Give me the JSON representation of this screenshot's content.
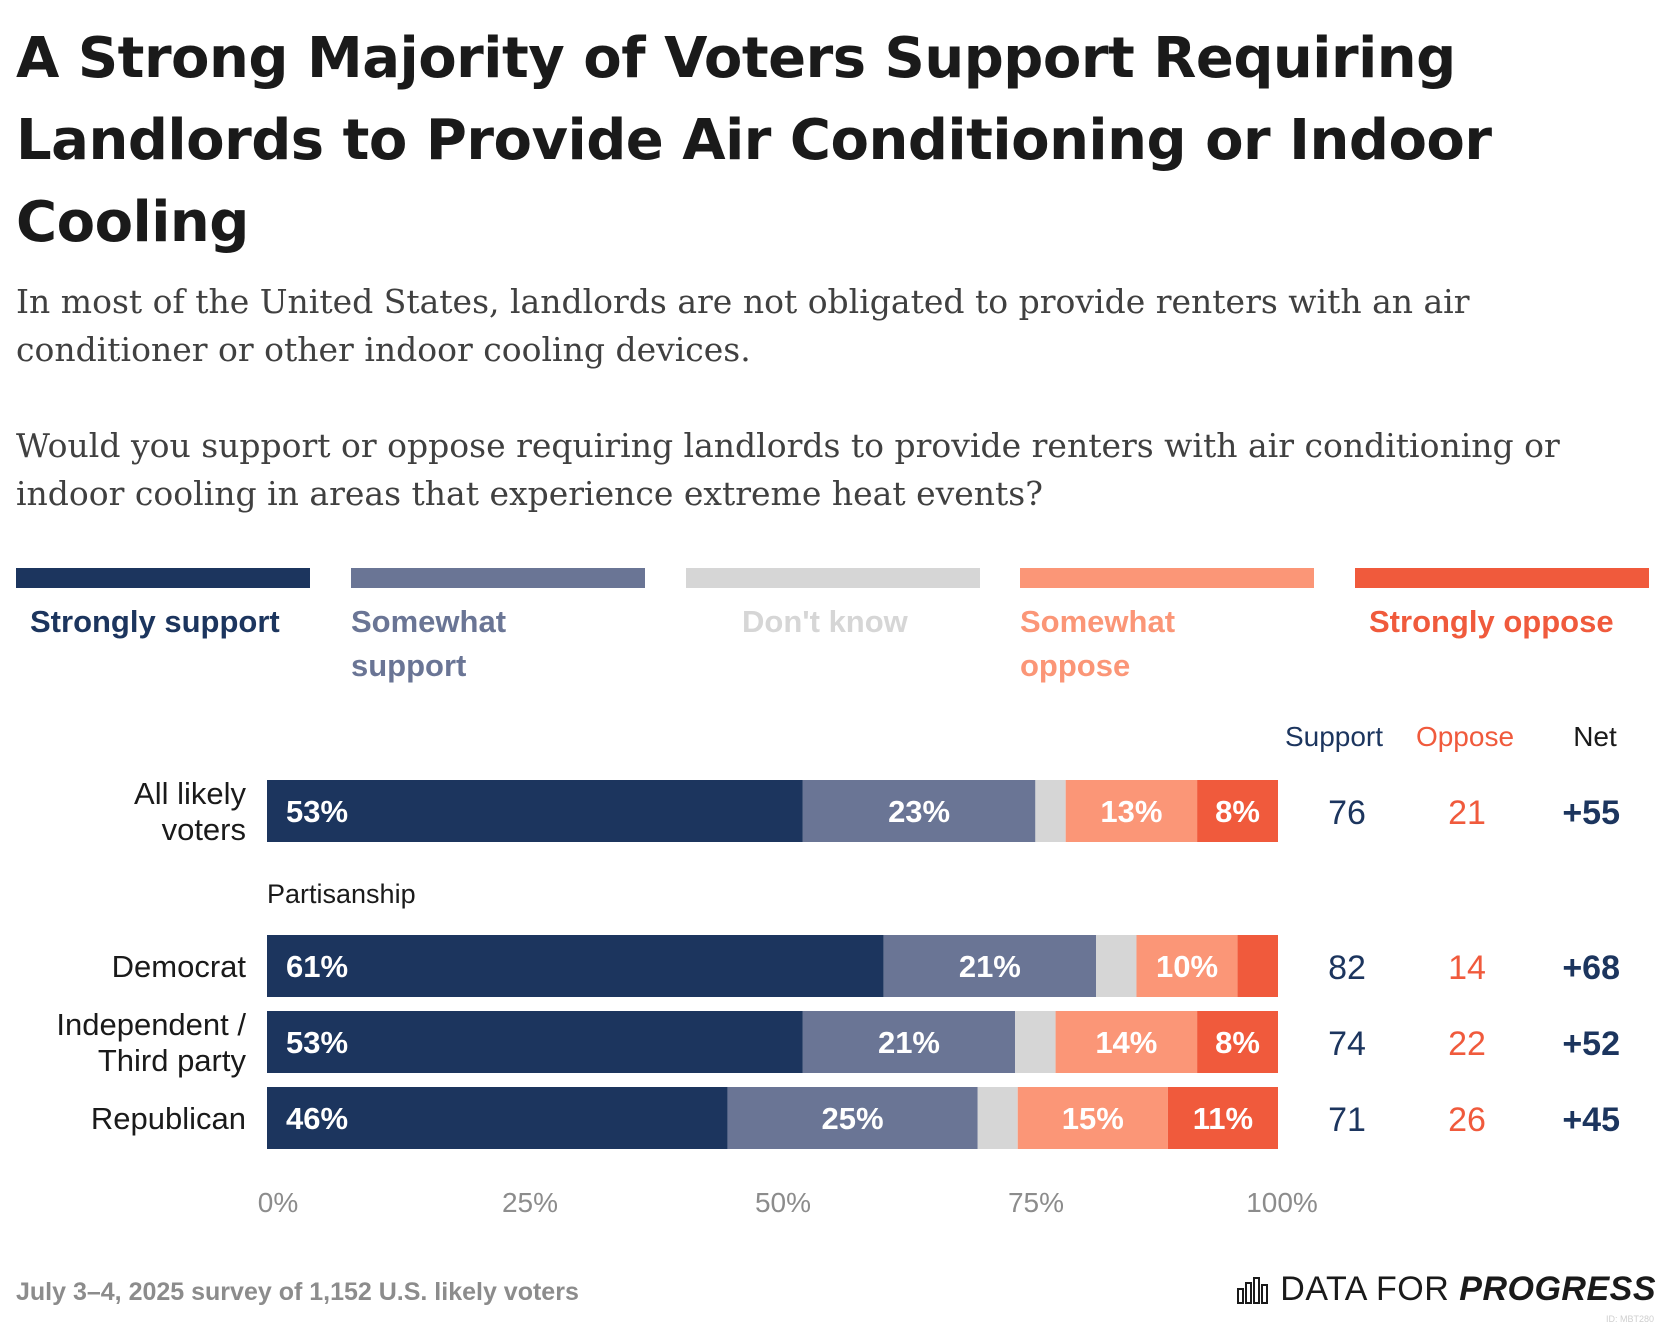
{
  "title": "A Strong Majority of Voters Support Requiring Landlords to Provide Air Conditioning or Indoor Cooling",
  "subtitle_1": "In most of the United States, landlords are not obligated to provide renters with an air conditioner or other indoor cooling devices.",
  "subtitle_2": "Would you support or oppose requiring landlords to provide renters with air conditioning or indoor cooling in areas that experience extreme heat events?",
  "colors": {
    "strongly_support": "#1c355e",
    "somewhat_support": "#6a7595",
    "dont_know": "#d6d6d6",
    "somewhat_oppose": "#fb9677",
    "strongly_oppose": "#f05a3c",
    "net": "#1c355e",
    "axis_text": "#8c8c8c"
  },
  "legend": [
    {
      "label": "Strongly support",
      "color": "#1c355e"
    },
    {
      "label": "Somewhat support",
      "color": "#6a7595"
    },
    {
      "label": "Don't know",
      "color": "#d6d6d6"
    },
    {
      "label": "Somewhat oppose",
      "color": "#fb9677"
    },
    {
      "label": "Strongly oppose",
      "color": "#f05a3c"
    }
  ],
  "chart_data": {
    "type": "bar",
    "orientation": "horizontal-stacked-100",
    "categories": [
      "All likely voters",
      "Democrat",
      "Independent / Third party",
      "Republican"
    ],
    "group_label": "Partisanship",
    "series": [
      {
        "name": "Strongly support",
        "values": [
          53,
          61,
          53,
          46
        ],
        "labels": [
          "53%",
          "61%",
          "53%",
          "46%"
        ]
      },
      {
        "name": "Somewhat support",
        "values": [
          23,
          21,
          21,
          25
        ],
        "labels": [
          "23%",
          "21%",
          "21%",
          "25%"
        ]
      },
      {
        "name": "Don't know",
        "values": [
          3,
          4,
          4,
          4
        ],
        "labels": [
          "",
          "",
          "",
          ""
        ]
      },
      {
        "name": "Somewhat oppose",
        "values": [
          13,
          10,
          14,
          15
        ],
        "labels": [
          "13%",
          "10%",
          "14%",
          "15%"
        ]
      },
      {
        "name": "Strongly oppose",
        "values": [
          8,
          4,
          8,
          11
        ],
        "labels": [
          "8%",
          "",
          "8%",
          "11%"
        ]
      }
    ],
    "columns": [
      "Support",
      "Oppose",
      "Net"
    ],
    "support": [
      "76",
      "82",
      "74",
      "71"
    ],
    "oppose": [
      "21",
      "14",
      "22",
      "26"
    ],
    "net": [
      "+55",
      "+68",
      "+52",
      "+45"
    ],
    "x_ticks": [
      "0%",
      "25%",
      "50%",
      "75%",
      "100%"
    ],
    "xlim": [
      0,
      100
    ]
  },
  "footer": {
    "note": "July 3–4, 2025 survey of 1,152 U.S. likely voters",
    "logo_regular": "DATA FOR",
    "logo_bold": "PROGRESS",
    "watermark": "ID: MBT280"
  }
}
